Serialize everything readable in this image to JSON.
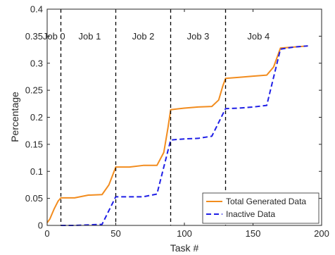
{
  "chart_data": {
    "type": "line",
    "title": "",
    "xlabel": "Task #",
    "ylabel": "Percentage",
    "xlim": [
      0,
      200
    ],
    "ylim": [
      0,
      0.4
    ],
    "xticks": [
      0,
      50,
      100,
      150,
      200
    ],
    "yticks": [
      0,
      0.05,
      0.1,
      0.15,
      0.2,
      0.25,
      0.3,
      0.35,
      0.4
    ],
    "ytick_labels": [
      "0",
      "0.05",
      "0.1",
      "0.15",
      "0.2",
      "0.25",
      "0.3",
      "0.35",
      "0.4"
    ],
    "grid": false,
    "legend_position": "bottom-right",
    "job_boundaries": [
      10,
      50,
      90,
      130
    ],
    "job_labels": [
      {
        "label": "Job 0",
        "x": 5
      },
      {
        "label": "Job 1",
        "x": 31
      },
      {
        "label": "Job 2",
        "x": 70
      },
      {
        "label": "Job 3",
        "x": 110
      },
      {
        "label": "Job 4",
        "x": 154
      }
    ],
    "series": [
      {
        "name": "Total Generated Data",
        "color": "#F28C1E",
        "style": "solid",
        "x": [
          0,
          2,
          5,
          8,
          10,
          20,
          30,
          40,
          45,
          50,
          60,
          70,
          80,
          85,
          88,
          90,
          100,
          110,
          120,
          125,
          128,
          130,
          140,
          150,
          160,
          165,
          170,
          180,
          190
        ],
        "y": [
          0.005,
          0.012,
          0.03,
          0.045,
          0.051,
          0.051,
          0.056,
          0.057,
          0.075,
          0.108,
          0.108,
          0.111,
          0.111,
          0.135,
          0.18,
          0.214,
          0.217,
          0.219,
          0.22,
          0.232,
          0.258,
          0.272,
          0.274,
          0.276,
          0.278,
          0.293,
          0.328,
          0.33,
          0.332
        ]
      },
      {
        "name": "Inactive Data",
        "color": "#1F1FE6",
        "style": "dashed",
        "x": [
          10,
          20,
          30,
          40,
          50,
          60,
          70,
          80,
          90,
          100,
          110,
          120,
          130,
          140,
          150,
          160,
          170,
          180,
          190
        ],
        "y": [
          0,
          0,
          0.001,
          0.002,
          0.053,
          0.053,
          0.053,
          0.058,
          0.158,
          0.16,
          0.161,
          0.165,
          0.216,
          0.217,
          0.219,
          0.222,
          0.326,
          0.33,
          0.332
        ]
      }
    ]
  }
}
